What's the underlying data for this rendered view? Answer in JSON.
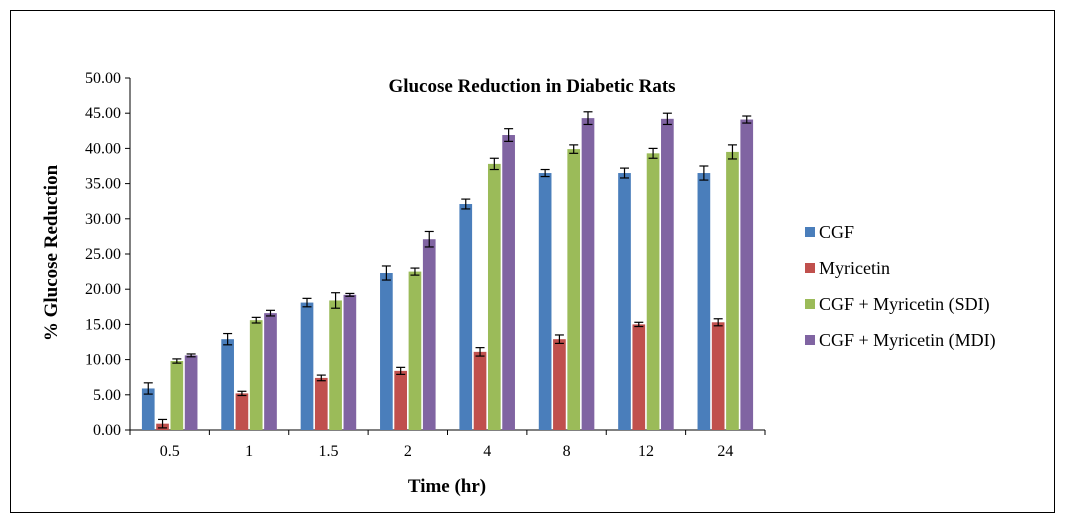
{
  "chart_data": {
    "type": "bar",
    "title": "Glucose Reduction in Diabetic Rats",
    "xlabel": "Time (hr)",
    "ylabel": "% Glucose Reduction",
    "ylim": [
      0,
      50
    ],
    "yticks": [
      "0.00",
      "5.00",
      "10.00",
      "15.00",
      "20.00",
      "25.00",
      "30.00",
      "35.00",
      "40.00",
      "45.00",
      "50.00"
    ],
    "categories": [
      "0.5",
      "1",
      "1.5",
      "2",
      "4",
      "8",
      "12",
      "24"
    ],
    "legend_position": "right",
    "grid": false,
    "series": [
      {
        "name": "CGF",
        "color": "#4a7ebb",
        "values": [
          5.9,
          12.9,
          18.1,
          22.3,
          32.1,
          36.5,
          36.5,
          36.5
        ],
        "errors": [
          0.8,
          0.8,
          0.6,
          1.0,
          0.7,
          0.5,
          0.7,
          1.0
        ]
      },
      {
        "name": "Myricetin",
        "color": "#c0504d",
        "values": [
          0.9,
          5.2,
          7.4,
          8.4,
          11.1,
          12.9,
          15.0,
          15.3
        ],
        "errors": [
          0.6,
          0.3,
          0.4,
          0.5,
          0.6,
          0.6,
          0.3,
          0.5
        ]
      },
      {
        "name": "CGF + Myricetin (SDI)",
        "color": "#9bbb59",
        "values": [
          9.8,
          15.6,
          18.4,
          22.5,
          37.8,
          39.9,
          39.3,
          39.5
        ],
        "errors": [
          0.3,
          0.4,
          1.1,
          0.5,
          0.8,
          0.6,
          0.7,
          1.0
        ]
      },
      {
        "name": "CGF + Myricetin (MDI)",
        "color": "#8064a2",
        "values": [
          10.6,
          16.6,
          19.2,
          27.1,
          41.9,
          44.3,
          44.2,
          44.1
        ],
        "errors": [
          0.2,
          0.4,
          0.2,
          1.1,
          0.9,
          0.9,
          0.8,
          0.5
        ]
      }
    ]
  }
}
